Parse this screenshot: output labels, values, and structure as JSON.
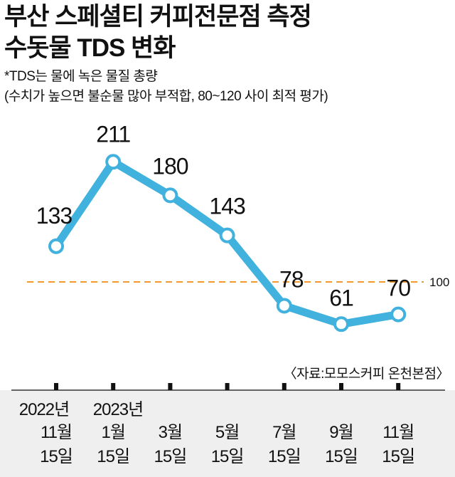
{
  "title_line1": "부산 스페셜티 커피전문점 측정",
  "title_line2": "수돗물 TDS 변화",
  "note_line1": "*TDS는 물에 녹은 물질 총량",
  "note_line2": "(수치가 높으면 불순물 많아 부적합, 80~120 사이 최적 평가)",
  "source": "〈자료:모모스커피 온천본점〉",
  "colors": {
    "line": "#41b1dd",
    "reference": "#f39a2b"
  },
  "chart_data": {
    "type": "line",
    "title": "부산 스페셜티 커피전문점 측정 수돗물 TDS 변화",
    "categories": [
      {
        "year": "2022년",
        "month": "11월",
        "day": "15일"
      },
      {
        "year": "2023년",
        "month": "1월",
        "day": "15일"
      },
      {
        "year": "",
        "month": "3월",
        "day": "15일"
      },
      {
        "year": "",
        "month": "5월",
        "day": "15일"
      },
      {
        "year": "",
        "month": "7월",
        "day": "15일"
      },
      {
        "year": "",
        "month": "9월",
        "day": "15일"
      },
      {
        "year": "",
        "month": "11월",
        "day": "15일"
      }
    ],
    "values": [
      133,
      211,
      180,
      143,
      78,
      61,
      70
    ],
    "reference_line": {
      "value": 100,
      "label": "100"
    },
    "ylim": [
      0,
      240
    ]
  }
}
